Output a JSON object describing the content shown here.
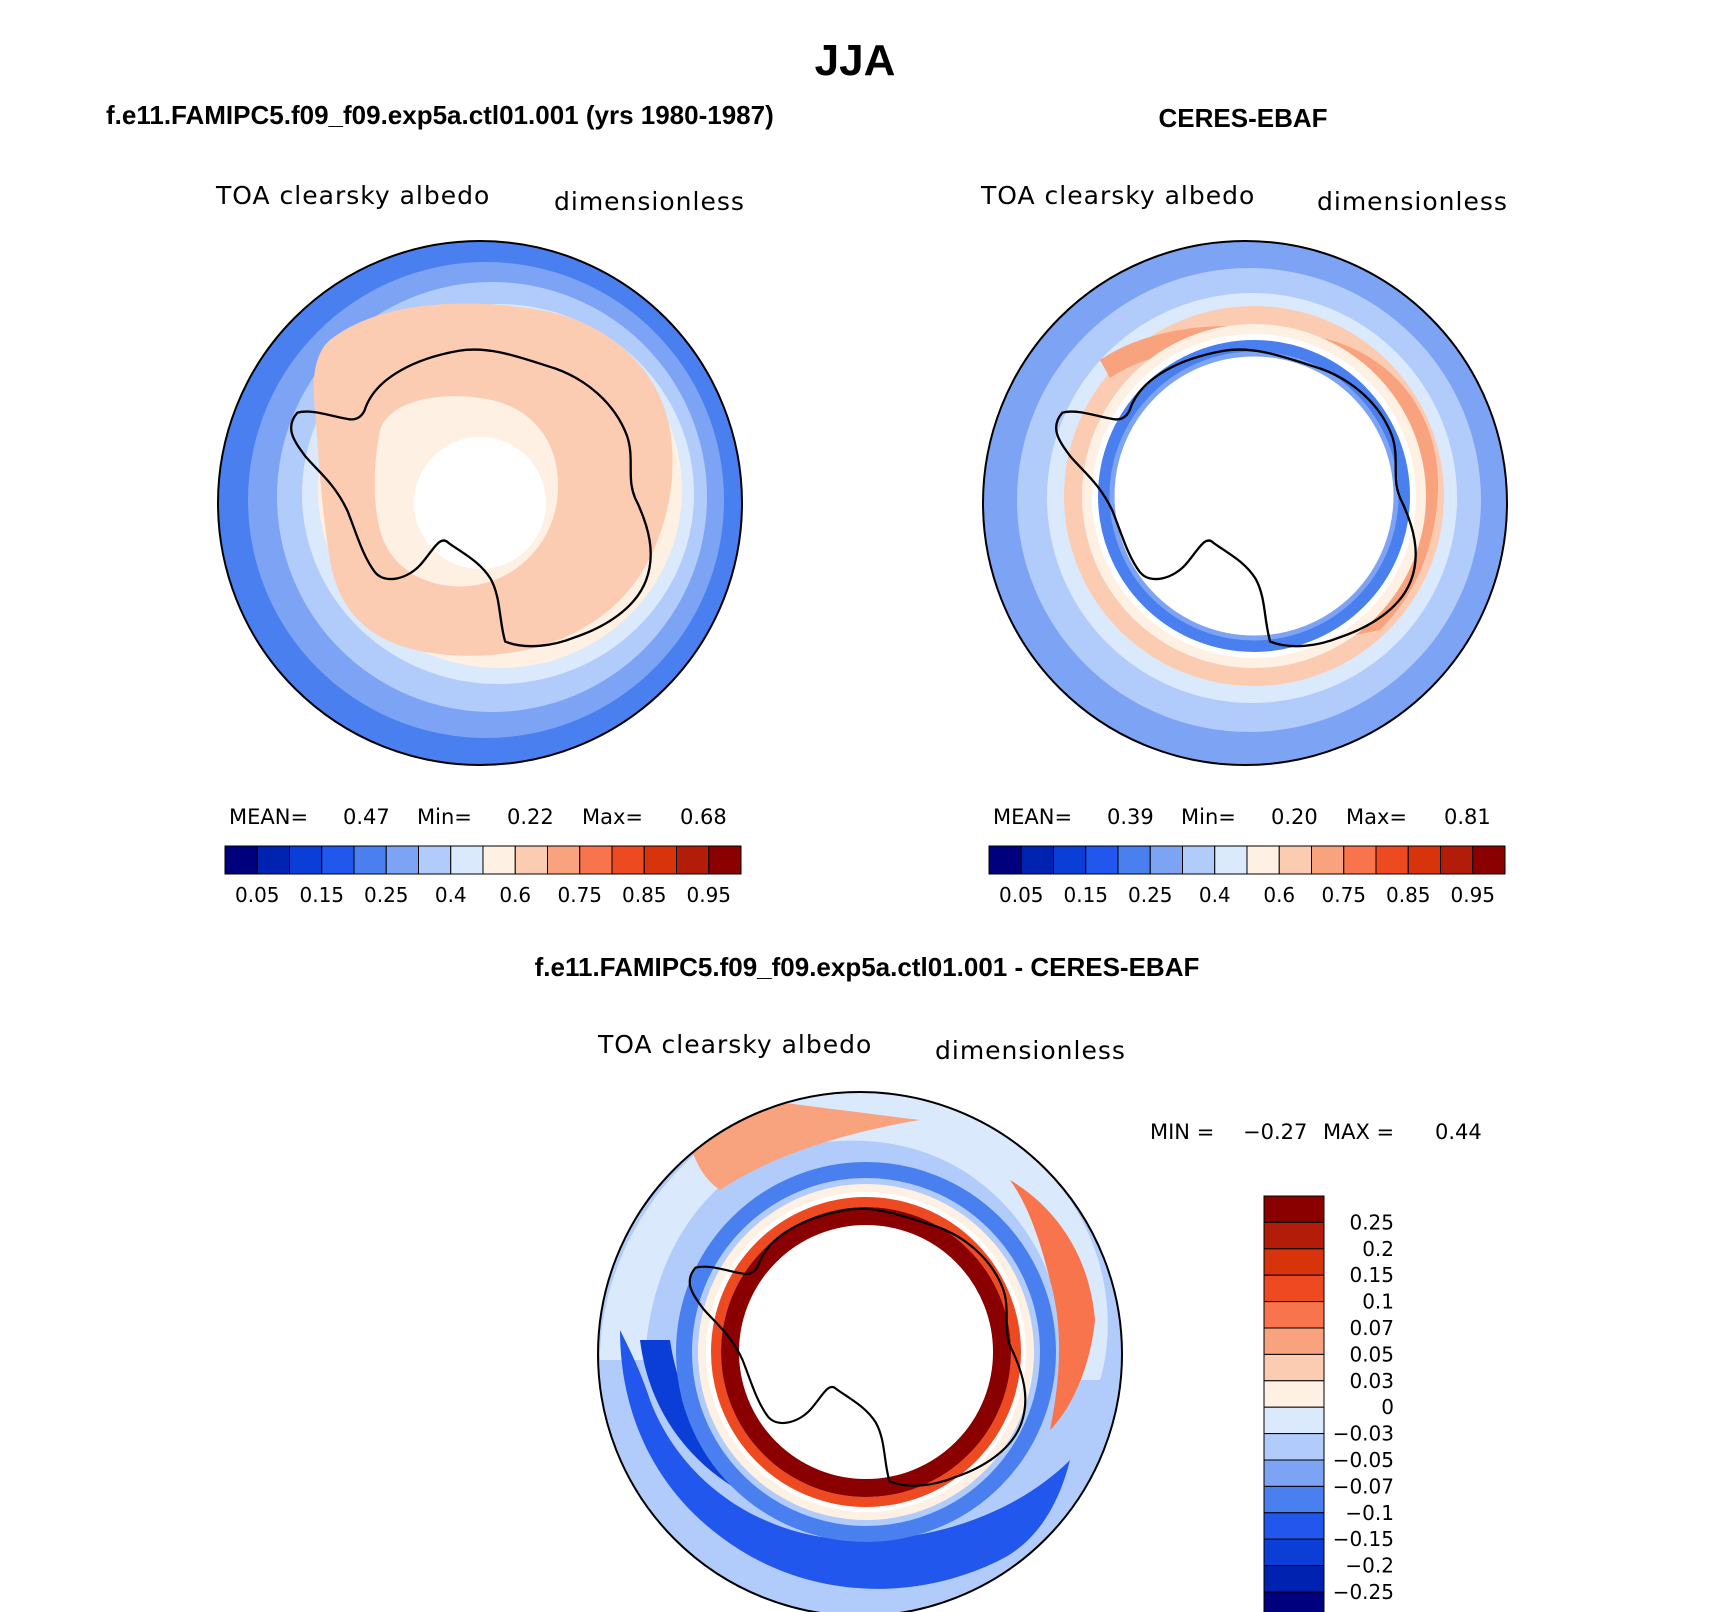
{
  "figure_title": "JJA",
  "chart_data": [
    {
      "type": "heatmap",
      "panel": "model",
      "title": "f.e11.FAMIPC5.f09_f09.exp5a.ctl01.001 (yrs 1980-1987)",
      "variable": "TOA clearsky albedo",
      "units": "dimensionless",
      "projection": "south polar stereographic",
      "stats": {
        "mean_label": "MEAN=",
        "mean": "0.47",
        "min_label": "Min=",
        "min": "0.22",
        "max_label": "Max=",
        "max": "0.68"
      },
      "colorbar": {
        "labels": [
          "0.05",
          "0.15",
          "0.25",
          "0.4",
          "0.6",
          "0.75",
          "0.85",
          "0.95"
        ],
        "colors": [
          "#00007f",
          "#0022b0",
          "#0a3ed6",
          "#2257ee",
          "#4a7ff0",
          "#7da3f5",
          "#b1cbfa",
          "#dbe9fc",
          "#fff0e4",
          "#fbcbb2",
          "#f8a27e",
          "#f7744c",
          "#ee4a22",
          "#d7340b",
          "#b21c08",
          "#8a0000"
        ]
      }
    },
    {
      "type": "heatmap",
      "panel": "observations",
      "title": "CERES-EBAF",
      "variable": "TOA clearsky albedo",
      "units": "dimensionless",
      "projection": "south polar stereographic",
      "stats": {
        "mean_label": "MEAN=",
        "mean": "0.39",
        "min_label": "Min=",
        "min": "0.20",
        "max_label": "Max=",
        "max": "0.81"
      },
      "colorbar": {
        "labels": [
          "0.05",
          "0.15",
          "0.25",
          "0.4",
          "0.6",
          "0.75",
          "0.85",
          "0.95"
        ],
        "colors": [
          "#00007f",
          "#0022b0",
          "#0a3ed6",
          "#2257ee",
          "#4a7ff0",
          "#7da3f5",
          "#b1cbfa",
          "#dbe9fc",
          "#fff0e4",
          "#fbcbb2",
          "#f8a27e",
          "#f7744c",
          "#ee4a22",
          "#d7340b",
          "#b21c08",
          "#8a0000"
        ]
      }
    },
    {
      "type": "heatmap",
      "panel": "difference",
      "title": "f.e11.FAMIPC5.f09_f09.exp5a.ctl01.001 - CERES-EBAF",
      "variable": "TOA clearsky albedo",
      "units": "dimensionless",
      "projection": "south polar stereographic",
      "stats": {
        "min_label": "MIN =",
        "min": "−0.27",
        "max_label": "MAX =",
        "max": "0.44"
      },
      "colorbar": {
        "labels": [
          "0.25",
          "0.2",
          "0.15",
          "0.1",
          "0.07",
          "0.05",
          "0.03",
          "0",
          "−0.03",
          "−0.05",
          "−0.07",
          "−0.1",
          "−0.15",
          "−0.2",
          "−0.25"
        ],
        "colors": [
          "#8a0000",
          "#b21c08",
          "#d7340b",
          "#ee4a22",
          "#f7744c",
          "#f8a27e",
          "#fbcbb2",
          "#fff0e4",
          "#dbe9fc",
          "#b1cbfa",
          "#7da3f5",
          "#4a7ff0",
          "#2257ee",
          "#0a3ed6",
          "#0022b0",
          "#00007f"
        ]
      }
    }
  ]
}
